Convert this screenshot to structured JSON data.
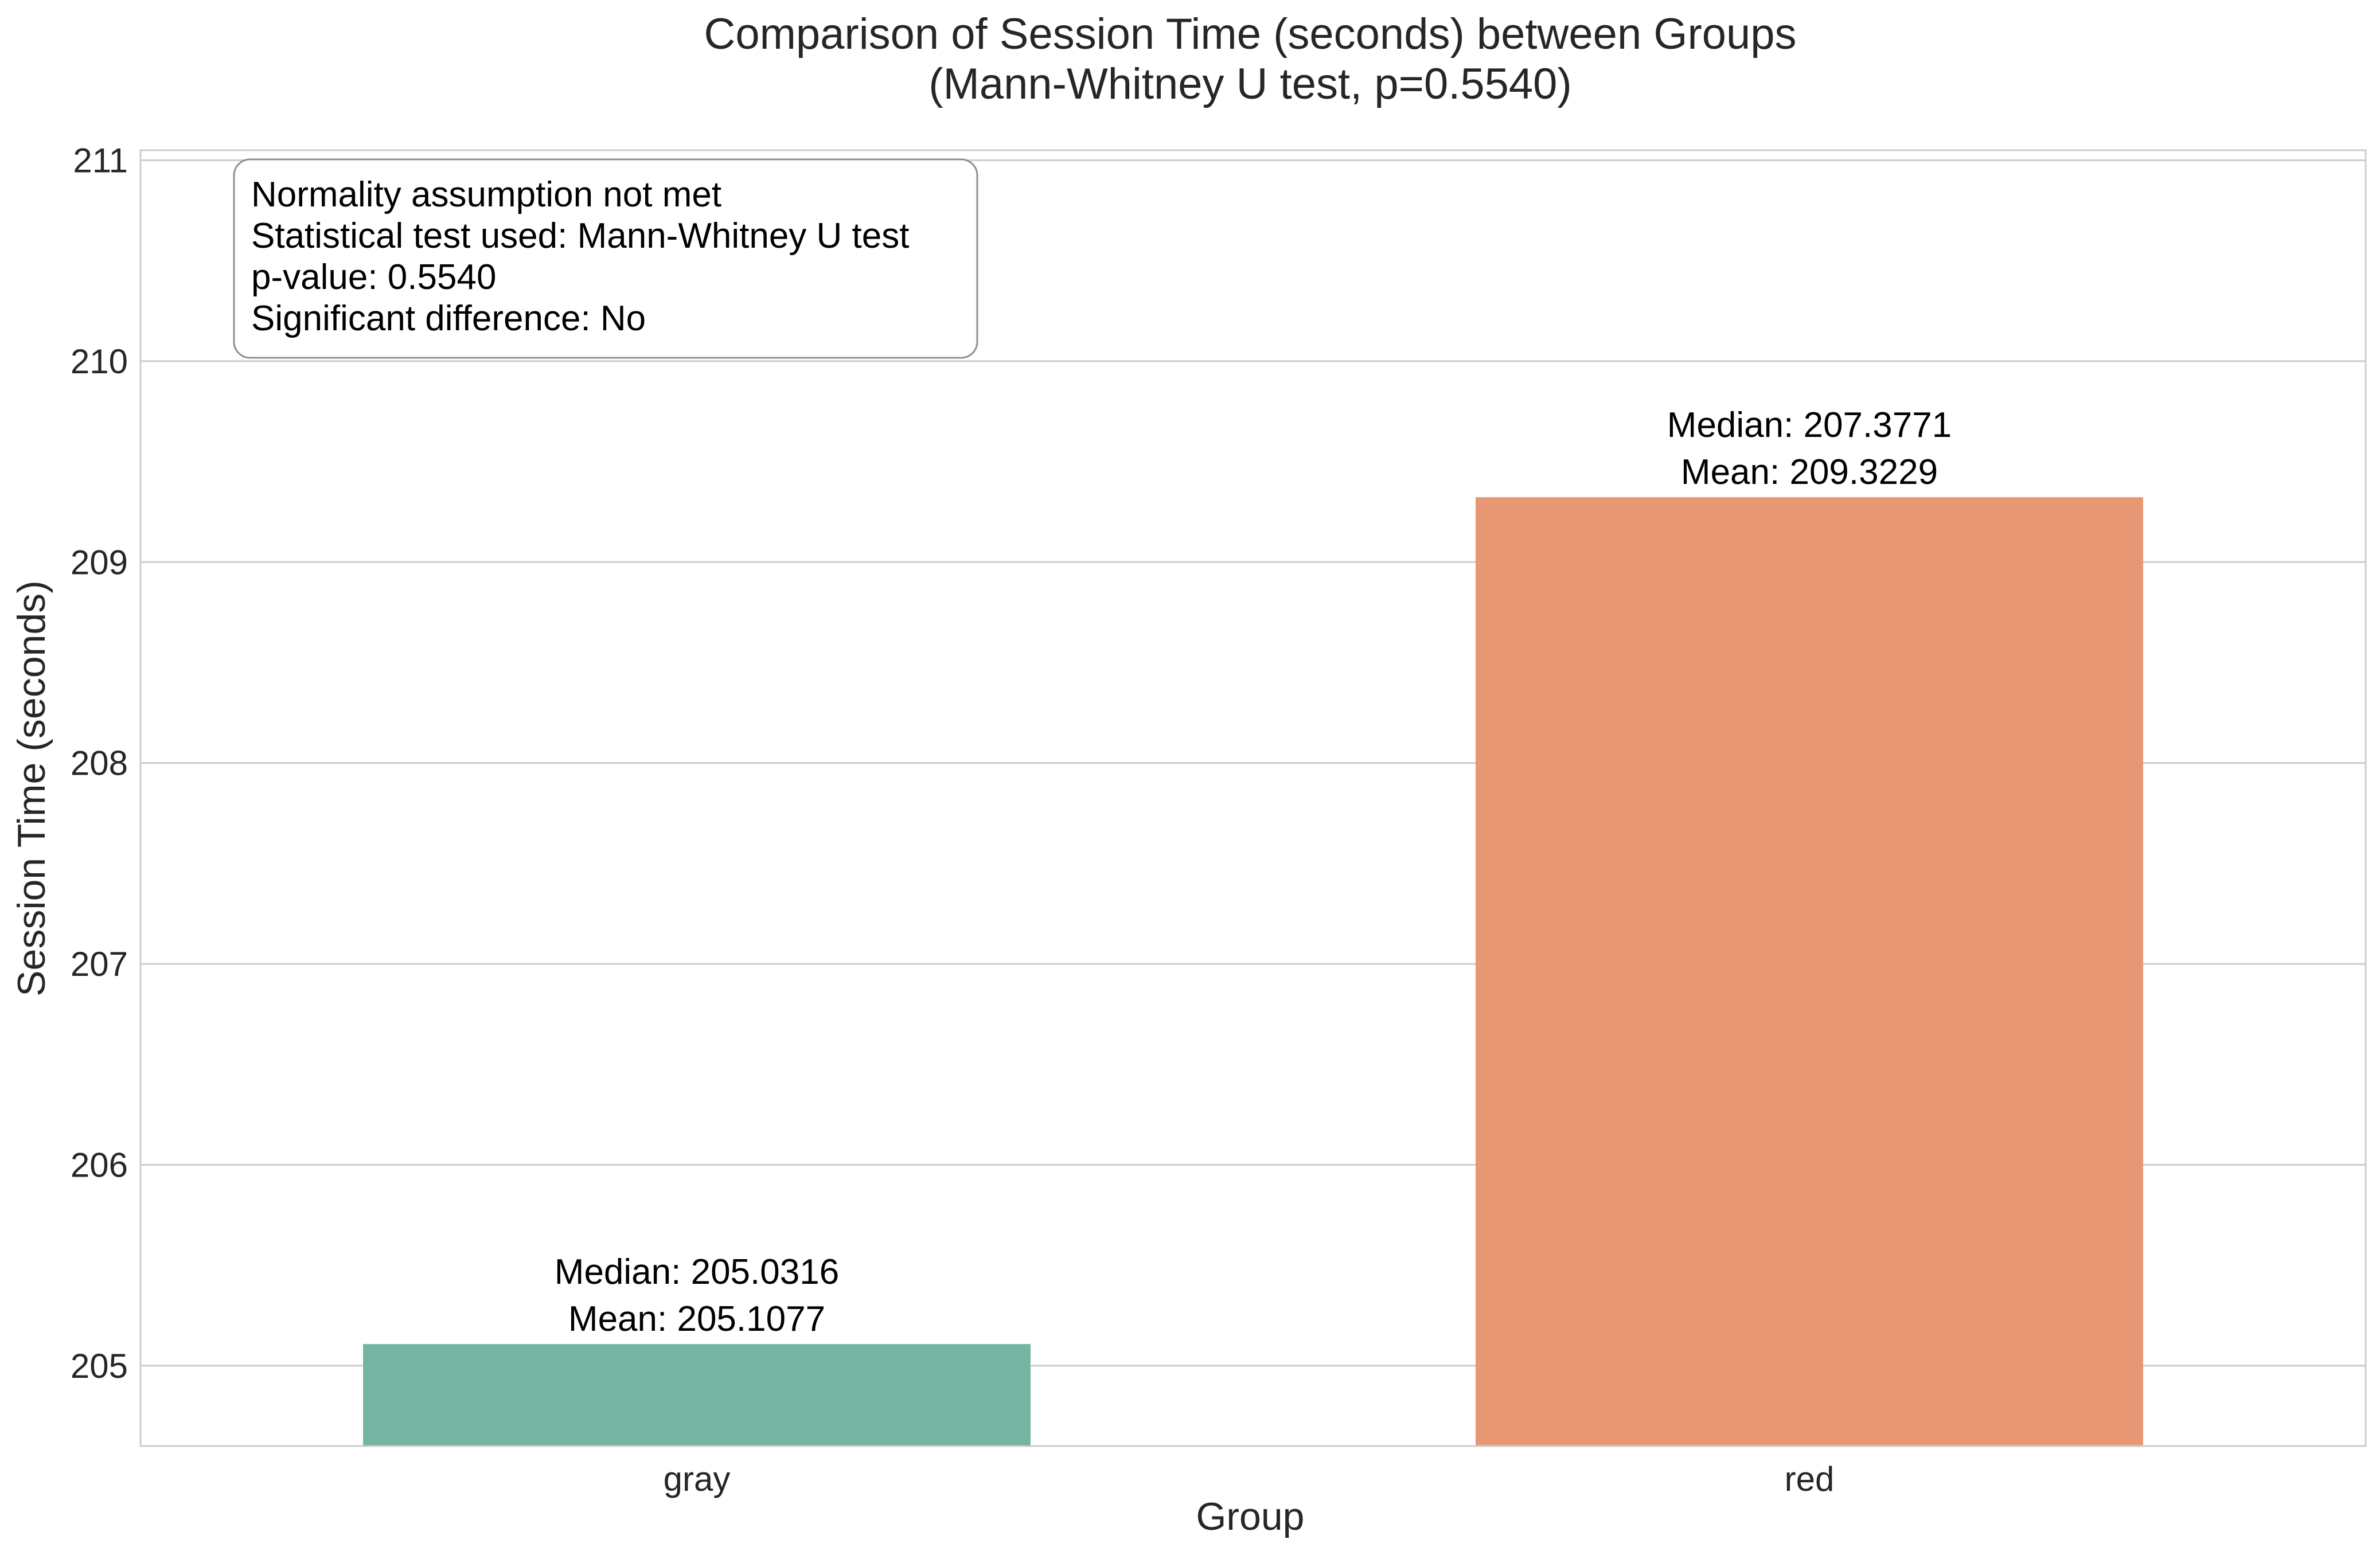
{
  "chart_data": {
    "type": "bar",
    "title": [
      "Comparison of Session Time (seconds) between Groups",
      "(Mann-Whitney U test, p=0.5540)"
    ],
    "xlabel": "Group",
    "ylabel": "Session Time (seconds)",
    "categories": [
      "gray",
      "red"
    ],
    "values": [
      205.1077,
      209.3229
    ],
    "bar_labels": [
      [
        "Median: 205.0316",
        "Mean: 205.1077"
      ],
      [
        "Median: 207.3771",
        "Mean: 209.3229"
      ]
    ],
    "colors": [
      "#75b4a1",
      "#e89775"
    ],
    "ylim": [
      204.6,
      211.05
    ],
    "yticks": [
      205,
      206,
      207,
      208,
      209,
      210,
      211
    ],
    "grid": true,
    "stats_box": [
      "Normality assumption not met",
      "Statistical test used: Mann-Whitney U test",
      "p-value: 0.5540",
      "Significant difference: No"
    ]
  }
}
